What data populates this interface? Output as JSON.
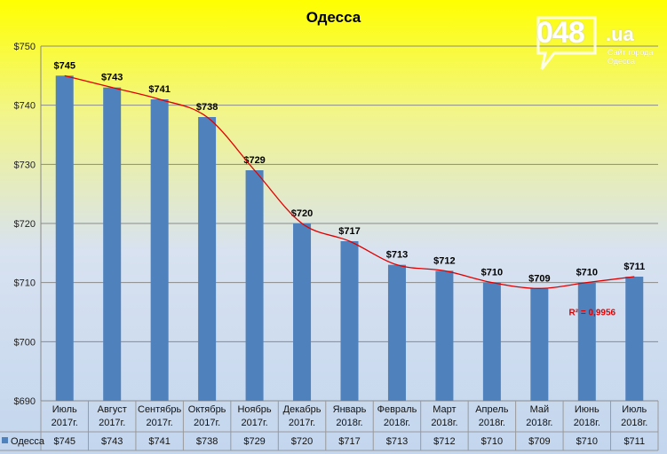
{
  "logo": {
    "main": "048",
    "suffix": ".ua",
    "tagline_1": "Сайт города",
    "tagline_2": "Одесса"
  },
  "chart_data": {
    "type": "bar",
    "title": "Одесса",
    "ylim": [
      690,
      750
    ],
    "y_ticks": [
      "$690",
      "$700",
      "$710",
      "$720",
      "$730",
      "$740",
      "$750"
    ],
    "categories": [
      [
        "Июль",
        "2017г."
      ],
      [
        "Август",
        "2017г."
      ],
      [
        "Сентябрь",
        "2017г."
      ],
      [
        "Октябрь",
        "2017г."
      ],
      [
        "Ноябрь",
        "2017г."
      ],
      [
        "Декабрь",
        "2017г."
      ],
      [
        "Январь",
        "2018г."
      ],
      [
        "Февраль",
        "2018г."
      ],
      [
        "Март",
        "2018г."
      ],
      [
        "Апрель",
        "2018г."
      ],
      [
        "Май",
        "2018г."
      ],
      [
        "Июнь",
        "2018г."
      ],
      [
        "Июль",
        "2018г."
      ]
    ],
    "series": [
      {
        "name": "Одесса",
        "values": [
          745,
          743,
          741,
          738,
          729,
          720,
          717,
          713,
          712,
          710,
          709,
          710,
          711
        ],
        "labels": [
          "$745",
          "$743",
          "$741",
          "$738",
          "$729",
          "$720",
          "$717",
          "$713",
          "$712",
          "$710",
          "$709",
          "$710",
          "$711"
        ]
      }
    ],
    "trendline": {
      "type": "polynomial",
      "r_squared_label": "R² = 0,9956"
    },
    "grid": true,
    "legend": "data-table",
    "colors": {
      "bar": "#4f81bd",
      "trend": "#e00000",
      "grid": "#8a8a8a"
    }
  }
}
